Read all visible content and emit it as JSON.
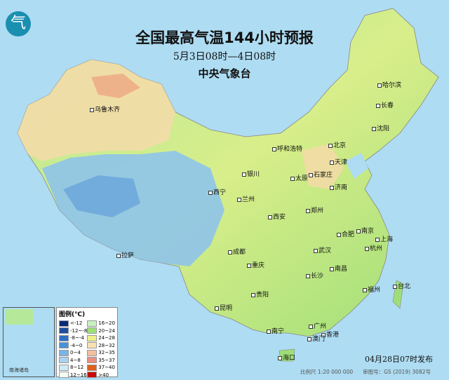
{
  "header": {
    "title": "全国最高气温144小时预报",
    "subtitle": "5月3日08时—4日08时",
    "organization": "中央气象台",
    "logo_icon": "cma-logo"
  },
  "cities": [
    {
      "name": "乌鲁木齐"
    },
    {
      "name": "哈尔滨"
    },
    {
      "name": "长春"
    },
    {
      "name": "沈阳"
    },
    {
      "name": "呼和浩特"
    },
    {
      "name": "北京"
    },
    {
      "name": "天津"
    },
    {
      "name": "银川"
    },
    {
      "name": "石家庄"
    },
    {
      "name": "太原"
    },
    {
      "name": "济南"
    },
    {
      "name": "西宁"
    },
    {
      "name": "兰州"
    },
    {
      "name": "郑州"
    },
    {
      "name": "西安"
    },
    {
      "name": "合肥"
    },
    {
      "name": "南京"
    },
    {
      "name": "上海"
    },
    {
      "name": "杭州"
    },
    {
      "name": "成都"
    },
    {
      "name": "武汉"
    },
    {
      "name": "重庆"
    },
    {
      "name": "长沙"
    },
    {
      "name": "南昌"
    },
    {
      "name": "拉萨"
    },
    {
      "name": "福州"
    },
    {
      "name": "台北"
    },
    {
      "name": "贵阳"
    },
    {
      "name": "昆明"
    },
    {
      "name": "南宁"
    },
    {
      "name": "广州"
    },
    {
      "name": "香港"
    },
    {
      "name": "澳门"
    },
    {
      "name": "海口"
    }
  ],
  "legend": {
    "title": "图例(℃)",
    "items": [
      {
        "label": "<-12",
        "color": "#0a2a7a"
      },
      {
        "label": "-12~-8",
        "color": "#1c4fa0"
      },
      {
        "label": "-8~-4",
        "color": "#2f6fc6"
      },
      {
        "label": "-4~0",
        "color": "#4a90d8"
      },
      {
        "label": "0~4",
        "color": "#79b4e6"
      },
      {
        "label": "4~8",
        "color": "#a8d2ef"
      },
      {
        "label": "8~12",
        "color": "#cdebf6"
      },
      {
        "label": "12~16",
        "color": "#f4fbf2"
      },
      {
        "label": "16~20",
        "color": "#c8f0c0"
      },
      {
        "label": "20~24",
        "color": "#9ee07a"
      },
      {
        "label": "24~28",
        "color": "#eef08a"
      },
      {
        "label": "28~32",
        "color": "#f8e2b0"
      },
      {
        "label": "32~35",
        "color": "#f3c09c"
      },
      {
        "label": "35~37",
        "color": "#ea9080"
      },
      {
        "label": "37~40",
        "color": "#e0601e"
      },
      {
        "label": ">40",
        "color": "#c80a0a"
      }
    ]
  },
  "footer": {
    "issued": "04月28日07时发布",
    "scale": "比例尺 1:20 000 000",
    "map_number": "审图号：GS (2019) 3082号"
  },
  "inset": {
    "label": "南海诸岛"
  }
}
